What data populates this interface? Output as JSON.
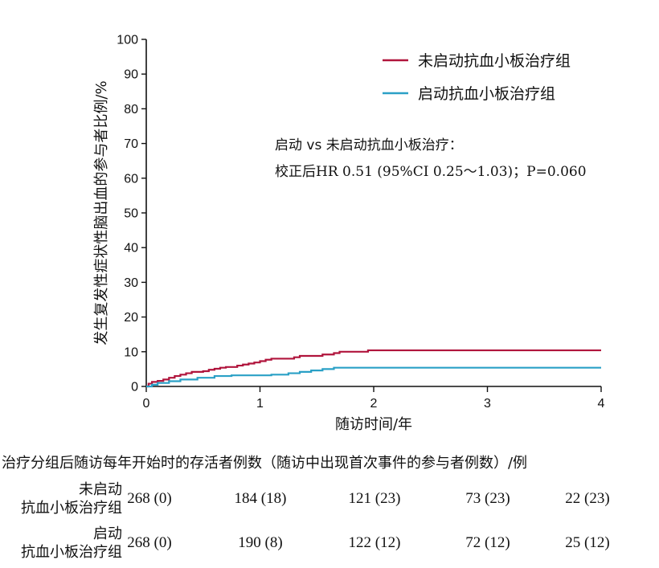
{
  "chart_data": {
    "type": "line",
    "step": true,
    "xlabel": "随访时间/年",
    "ylabel": "发生复发性症状性脑出血的参与者比例/%",
    "xlim": [
      0,
      4
    ],
    "ylim": [
      0,
      100
    ],
    "x_ticks": [
      0,
      1,
      2,
      3,
      4
    ],
    "y_ticks": [
      0,
      10,
      20,
      30,
      40,
      50,
      60,
      70,
      80,
      90,
      100
    ],
    "grid": false,
    "legend_position": "top-right",
    "series": [
      {
        "name": "未启动抗血小板治疗组",
        "color": "#b0143c",
        "points": [
          [
            0,
            0
          ],
          [
            0.02,
            0.8
          ],
          [
            0.05,
            1.3
          ],
          [
            0.1,
            1.6
          ],
          [
            0.15,
            2.0
          ],
          [
            0.2,
            2.5
          ],
          [
            0.25,
            3.0
          ],
          [
            0.3,
            3.4
          ],
          [
            0.35,
            3.8
          ],
          [
            0.4,
            4.2
          ],
          [
            0.5,
            4.4
          ],
          [
            0.55,
            4.8
          ],
          [
            0.6,
            5.1
          ],
          [
            0.65,
            5.4
          ],
          [
            0.7,
            5.6
          ],
          [
            0.8,
            6.0
          ],
          [
            0.85,
            6.3
          ],
          [
            0.9,
            6.6
          ],
          [
            0.95,
            6.9
          ],
          [
            1.0,
            7.3
          ],
          [
            1.05,
            7.7
          ],
          [
            1.1,
            8.0
          ],
          [
            1.3,
            8.4
          ],
          [
            1.35,
            8.8
          ],
          [
            1.55,
            9.2
          ],
          [
            1.65,
            9.6
          ],
          [
            1.7,
            10.0
          ],
          [
            1.95,
            10.4
          ],
          [
            4,
            10.4
          ]
        ]
      },
      {
        "name": "启动抗血小板治疗组",
        "color": "#2aa0c6",
        "points": [
          [
            0,
            0
          ],
          [
            0.05,
            0.5
          ],
          [
            0.1,
            1.0
          ],
          [
            0.2,
            1.5
          ],
          [
            0.3,
            2.0
          ],
          [
            0.45,
            2.5
          ],
          [
            0.6,
            3.0
          ],
          [
            0.75,
            3.2
          ],
          [
            1.1,
            3.4
          ],
          [
            1.25,
            3.8
          ],
          [
            1.35,
            4.2
          ],
          [
            1.45,
            4.6
          ],
          [
            1.55,
            5.0
          ],
          [
            1.65,
            5.4
          ],
          [
            4,
            5.4
          ]
        ]
      }
    ],
    "annotation": {
      "line1": "启动 vs 未启动抗血小板治疗：",
      "line2": "校正后HR 0.51 (95%CI 0.25～1.03)；P=0.060"
    }
  },
  "risk_table": {
    "title": "治疗分组后随访每年开始时的存活者例数（随访中出现首次事件的参与者例数）/例",
    "rows": [
      {
        "label_line1": "未启动",
        "label_line2": "抗血小板治疗组",
        "values": [
          "268 (0)",
          "184 (18)",
          "121 (23)",
          "73 (23)",
          "22 (23)"
        ]
      },
      {
        "label_line1": "启动",
        "label_line2": "抗血小板治疗组",
        "values": [
          "268 (0)",
          "190 (8)",
          "122 (12)",
          "72 (12)",
          "25 (12)"
        ]
      }
    ]
  }
}
